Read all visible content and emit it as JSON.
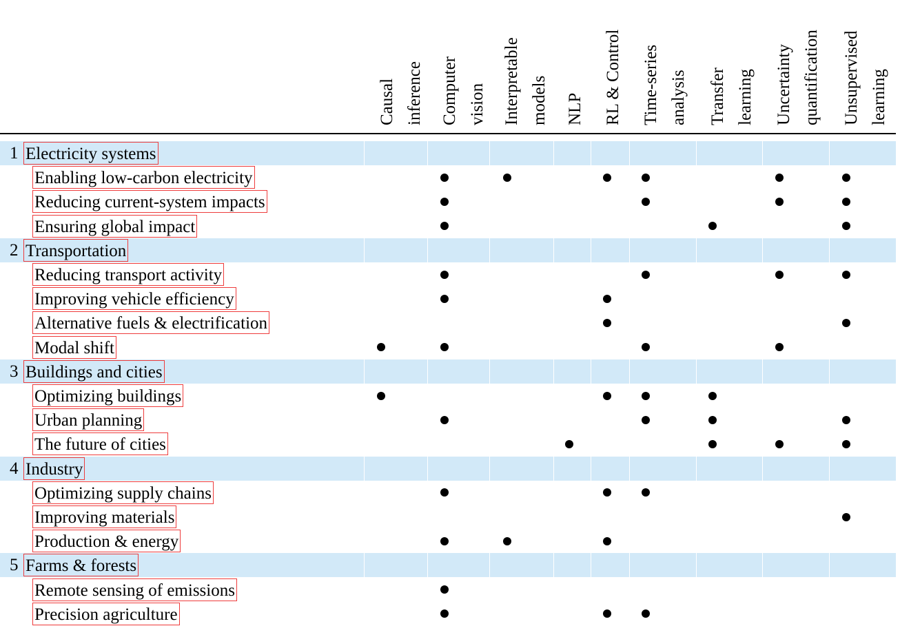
{
  "columns": [
    "Causal\ninference",
    "Computer\nvision",
    "Interpretable\nmodels",
    "NLP",
    "RL & Control",
    "Time-series\nanalysis",
    "Transfer\nlearning",
    "Uncertainty\nquantification",
    "Unsupervised\nlearning"
  ],
  "sections": [
    {
      "num": "1",
      "title": "Electricity systems",
      "rows": [
        {
          "label": "Enabling low-carbon electricity",
          "marks": [
            0,
            1,
            1,
            0,
            1,
            1,
            0,
            1,
            1
          ]
        },
        {
          "label": "Reducing current-system impacts",
          "marks": [
            0,
            1,
            0,
            0,
            0,
            1,
            0,
            1,
            1
          ]
        },
        {
          "label": "Ensuring global impact",
          "marks": [
            0,
            1,
            0,
            0,
            0,
            0,
            1,
            0,
            1
          ]
        }
      ]
    },
    {
      "num": "2",
      "title": "Transportation",
      "rows": [
        {
          "label": "Reducing transport activity",
          "marks": [
            0,
            1,
            0,
            0,
            0,
            1,
            0,
            1,
            1
          ]
        },
        {
          "label": "Improving vehicle efficiency",
          "marks": [
            0,
            1,
            0,
            0,
            1,
            0,
            0,
            0,
            0
          ]
        },
        {
          "label": "Alternative fuels & electrification",
          "marks": [
            0,
            0,
            0,
            0,
            1,
            0,
            0,
            0,
            1
          ]
        },
        {
          "label": "Modal shift",
          "marks": [
            1,
            1,
            0,
            0,
            0,
            1,
            0,
            1,
            0
          ]
        }
      ]
    },
    {
      "num": "3",
      "title": "Buildings and cities",
      "rows": [
        {
          "label": "Optimizing buildings",
          "marks": [
            1,
            0,
            0,
            0,
            1,
            1,
            1,
            0,
            0
          ]
        },
        {
          "label": "Urban planning",
          "marks": [
            0,
            1,
            0,
            0,
            0,
            1,
            1,
            0,
            1
          ]
        },
        {
          "label": "The future of cities",
          "marks": [
            0,
            0,
            0,
            1,
            0,
            0,
            1,
            1,
            1
          ]
        }
      ]
    },
    {
      "num": "4",
      "title": "Industry",
      "rows": [
        {
          "label": "Optimizing supply chains",
          "marks": [
            0,
            1,
            0,
            0,
            1,
            1,
            0,
            0,
            0
          ]
        },
        {
          "label": "Improving materials",
          "marks": [
            0,
            0,
            0,
            0,
            0,
            0,
            0,
            0,
            1
          ]
        },
        {
          "label": "Production & energy",
          "marks": [
            0,
            1,
            1,
            0,
            1,
            0,
            0,
            0,
            0
          ]
        }
      ]
    },
    {
      "num": "5",
      "title": "Farms & forests",
      "rows": [
        {
          "label": "Remote sensing of emissions",
          "marks": [
            0,
            1,
            0,
            0,
            0,
            0,
            0,
            0,
            0
          ]
        },
        {
          "label": "Precision agriculture",
          "marks": [
            0,
            1,
            0,
            0,
            1,
            1,
            0,
            0,
            0
          ]
        }
      ]
    }
  ]
}
